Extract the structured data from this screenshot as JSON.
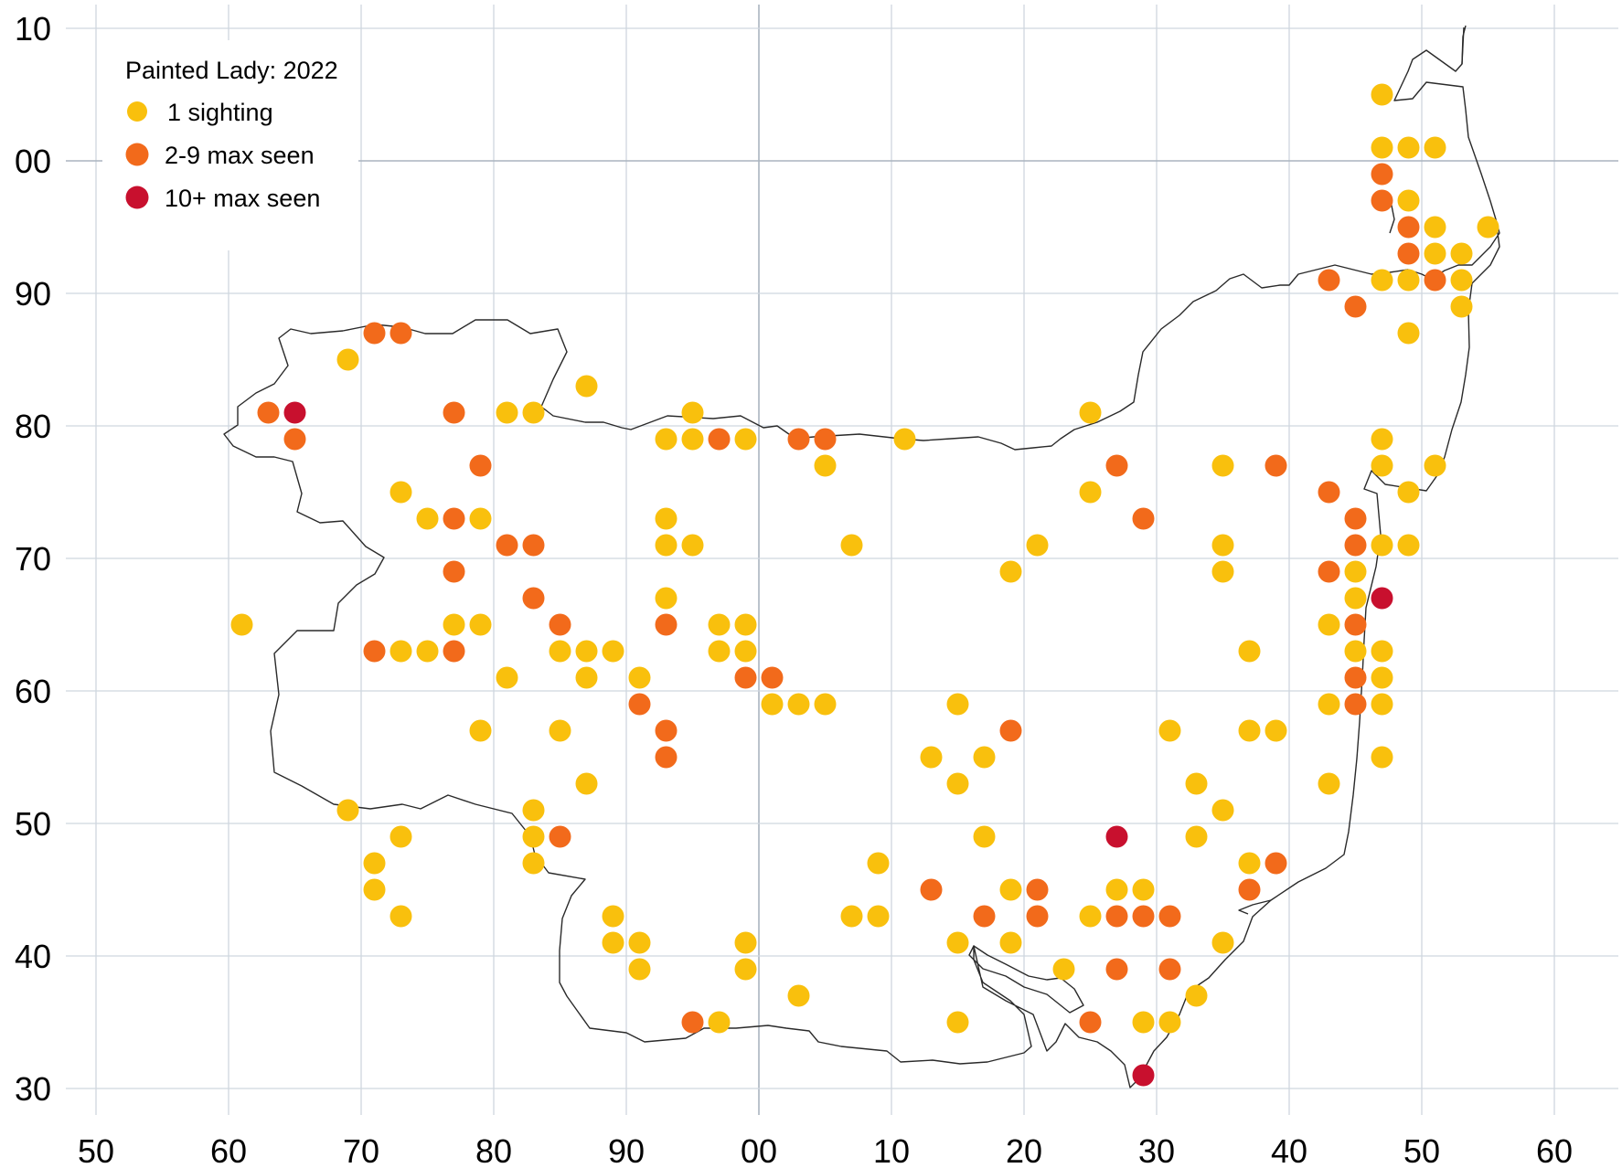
{
  "chart_data": {
    "type": "scatter",
    "title": "Painted Lady:  2022",
    "x_tick_labels": [
      "50",
      "60",
      "70",
      "80",
      "90",
      "00",
      "10",
      "20",
      "30",
      "40",
      "50",
      "60"
    ],
    "y_tick_labels": [
      "10",
      "00",
      "90",
      "80",
      "70",
      "60",
      "50",
      "40",
      "30"
    ],
    "legend": [
      {
        "key": "c1",
        "label": "1 sighting",
        "color": "#f9c00d"
      },
      {
        "key": "c2",
        "label": "2-9 max seen",
        "color": "#f26a1b"
      },
      {
        "key": "c3",
        "label": "10+ max seen",
        "color": "#c8102e"
      }
    ],
    "series": [
      {
        "key": "c1",
        "label": "1 sighting",
        "color": "#f9c00d",
        "points": [
          [
            61,
            65
          ],
          [
            69,
            85
          ],
          [
            69,
            51
          ],
          [
            71,
            47
          ],
          [
            71,
            45
          ],
          [
            73,
            75
          ],
          [
            73,
            63
          ],
          [
            73,
            49
          ],
          [
            73,
            43
          ],
          [
            75,
            73
          ],
          [
            75,
            63
          ],
          [
            77,
            65
          ],
          [
            79,
            73
          ],
          [
            79,
            65
          ],
          [
            79,
            57
          ],
          [
            81,
            81
          ],
          [
            81,
            61
          ],
          [
            83,
            81
          ],
          [
            83,
            51
          ],
          [
            83,
            49
          ],
          [
            83,
            47
          ],
          [
            85,
            63
          ],
          [
            85,
            57
          ],
          [
            87,
            83
          ],
          [
            87,
            63
          ],
          [
            87,
            61
          ],
          [
            87,
            53
          ],
          [
            89,
            63
          ],
          [
            89,
            43
          ],
          [
            89,
            41
          ],
          [
            91,
            61
          ],
          [
            91,
            41
          ],
          [
            91,
            39
          ],
          [
            93,
            79
          ],
          [
            93,
            73
          ],
          [
            93,
            71
          ],
          [
            93,
            67
          ],
          [
            95,
            81
          ],
          [
            95,
            79
          ],
          [
            95,
            71
          ],
          [
            97,
            65
          ],
          [
            97,
            63
          ],
          [
            97,
            35
          ],
          [
            99,
            79
          ],
          [
            99,
            65
          ],
          [
            99,
            63
          ],
          [
            99,
            41
          ],
          [
            99,
            39
          ],
          [
            101,
            59
          ],
          [
            103,
            59
          ],
          [
            103,
            37
          ],
          [
            105,
            77
          ],
          [
            105,
            59
          ],
          [
            107,
            71
          ],
          [
            109,
            47
          ],
          [
            109,
            43
          ],
          [
            107,
            43
          ],
          [
            111,
            79
          ],
          [
            113,
            55
          ],
          [
            115,
            59
          ],
          [
            115,
            53
          ],
          [
            115,
            41
          ],
          [
            115,
            35
          ],
          [
            117,
            55
          ],
          [
            117,
            49
          ],
          [
            119,
            69
          ],
          [
            119,
            45
          ],
          [
            119,
            41
          ],
          [
            121,
            71
          ],
          [
            123,
            39
          ],
          [
            125,
            81
          ],
          [
            125,
            75
          ],
          [
            125,
            43
          ],
          [
            127,
            45
          ],
          [
            129,
            45
          ],
          [
            129,
            35
          ],
          [
            131,
            57
          ],
          [
            131,
            35
          ],
          [
            133,
            53
          ],
          [
            133,
            49
          ],
          [
            133,
            37
          ],
          [
            135,
            77
          ],
          [
            135,
            71
          ],
          [
            135,
            69
          ],
          [
            135,
            51
          ],
          [
            135,
            41
          ],
          [
            137,
            63
          ],
          [
            137,
            57
          ],
          [
            137,
            47
          ],
          [
            139,
            57
          ],
          [
            143,
            65
          ],
          [
            143,
            59
          ],
          [
            143,
            53
          ],
          [
            145,
            69
          ],
          [
            145,
            67
          ],
          [
            145,
            63
          ],
          [
            147,
            105
          ],
          [
            147,
            101
          ],
          [
            147,
            91
          ],
          [
            147,
            79
          ],
          [
            147,
            77
          ],
          [
            147,
            71
          ],
          [
            147,
            63
          ],
          [
            147,
            61
          ],
          [
            147,
            59
          ],
          [
            147,
            55
          ],
          [
            149,
            101
          ],
          [
            149,
            97
          ],
          [
            149,
            91
          ],
          [
            149,
            87
          ],
          [
            149,
            75
          ],
          [
            149,
            71
          ],
          [
            151,
            101
          ],
          [
            151,
            95
          ],
          [
            151,
            93
          ],
          [
            151,
            77
          ],
          [
            153,
            93
          ],
          [
            153,
            91
          ],
          [
            153,
            89
          ],
          [
            155,
            95
          ]
        ]
      },
      {
        "key": "c2",
        "label": "2-9 max seen",
        "color": "#f26a1b",
        "points": [
          [
            63,
            81
          ],
          [
            65,
            79
          ],
          [
            71,
            87
          ],
          [
            73,
            87
          ],
          [
            71,
            63
          ],
          [
            77,
            81
          ],
          [
            77,
            73
          ],
          [
            77,
            69
          ],
          [
            77,
            63
          ],
          [
            79,
            77
          ],
          [
            81,
            71
          ],
          [
            83,
            71
          ],
          [
            83,
            67
          ],
          [
            85,
            65
          ],
          [
            85,
            49
          ],
          [
            93,
            65
          ],
          [
            93,
            57
          ],
          [
            93,
            55
          ],
          [
            91,
            59
          ],
          [
            95,
            35
          ],
          [
            97,
            79
          ],
          [
            99,
            61
          ],
          [
            101,
            61
          ],
          [
            103,
            79
          ],
          [
            105,
            79
          ],
          [
            113,
            45
          ],
          [
            117,
            43
          ],
          [
            119,
            57
          ],
          [
            121,
            45
          ],
          [
            121,
            43
          ],
          [
            125,
            35
          ],
          [
            127,
            77
          ],
          [
            127,
            43
          ],
          [
            127,
            39
          ],
          [
            129,
            73
          ],
          [
            129,
            43
          ],
          [
            131,
            43
          ],
          [
            131,
            39
          ],
          [
            137,
            45
          ],
          [
            139,
            77
          ],
          [
            139,
            47
          ],
          [
            143,
            91
          ],
          [
            143,
            75
          ],
          [
            143,
            69
          ],
          [
            145,
            89
          ],
          [
            145,
            73
          ],
          [
            145,
            71
          ],
          [
            145,
            65
          ],
          [
            145,
            61
          ],
          [
            145,
            59
          ],
          [
            147,
            99
          ],
          [
            147,
            97
          ],
          [
            149,
            95
          ],
          [
            149,
            93
          ],
          [
            151,
            91
          ]
        ]
      },
      {
        "key": "c3",
        "label": "10+ max seen",
        "color": "#c8102e",
        "points": [
          [
            65,
            81
          ],
          [
            127,
            49
          ],
          [
            129,
            31
          ],
          [
            147,
            67
          ]
        ]
      }
    ]
  }
}
